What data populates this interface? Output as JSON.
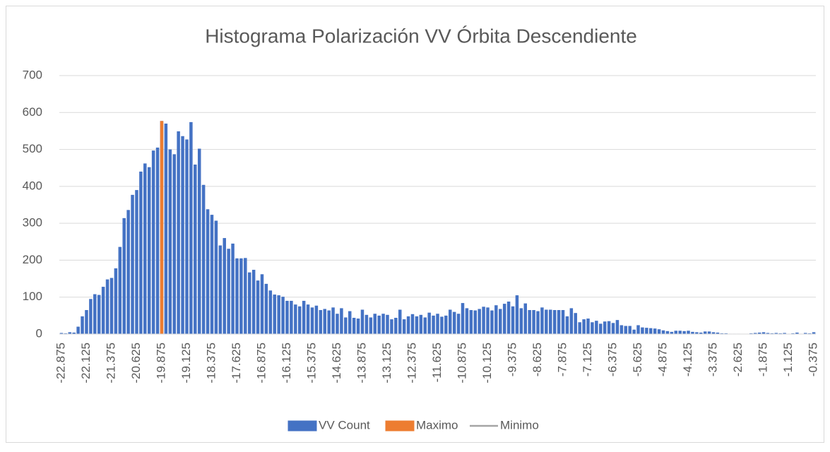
{
  "chart_data": {
    "type": "bar",
    "title": "Histograma Polarización VV Órbita Descendiente",
    "categories": [
      "-22.875",
      null,
      null,
      null,
      null,
      null,
      "-22.125",
      null,
      null,
      null,
      null,
      null,
      "-21.375",
      null,
      null,
      null,
      null,
      null,
      "-20.625",
      null,
      null,
      null,
      null,
      null,
      "-19.875",
      null,
      null,
      null,
      null,
      null,
      "-19.125",
      null,
      null,
      null,
      null,
      null,
      "-18.375",
      null,
      null,
      null,
      null,
      null,
      "-17.625",
      null,
      null,
      null,
      null,
      null,
      "-16.875",
      null,
      null,
      null,
      null,
      null,
      "-16.125",
      null,
      null,
      null,
      null,
      null,
      "-15.375",
      null,
      null,
      null,
      null,
      null,
      "-14.625",
      null,
      null,
      null,
      null,
      null,
      "-13.875",
      null,
      null,
      null,
      null,
      null,
      "-13.125",
      null,
      null,
      null,
      null,
      null,
      "-12.375",
      null,
      null,
      null,
      null,
      null,
      "-11.625",
      null,
      null,
      null,
      null,
      null,
      "-10.875",
      null,
      null,
      null,
      null,
      null,
      "-10.125",
      null,
      null,
      null,
      null,
      null,
      "-9.375",
      null,
      null,
      null,
      null,
      null,
      "-8.625",
      null,
      null,
      null,
      null,
      null,
      "-7.875",
      null,
      null,
      null,
      null,
      null,
      "-7.125",
      null,
      null,
      null,
      null,
      null,
      "-6.375",
      null,
      null,
      null,
      null,
      null,
      "-5.625",
      null,
      null,
      null,
      null,
      null,
      "-4.875",
      null,
      null,
      null,
      null,
      null,
      "-4.125",
      null,
      null,
      null,
      null,
      null,
      "-3.375",
      null,
      null,
      null,
      null,
      null,
      "-2.625",
      null,
      null,
      null,
      null,
      null,
      "-1.875",
      null,
      null,
      null,
      null,
      null,
      "-1.125",
      null,
      null,
      null,
      null,
      null,
      "-0.375"
    ],
    "series": [
      {
        "name": "VV Count",
        "type": "bar",
        "color": "#4472c4",
        "values": [
          3,
          2,
          5,
          4,
          20,
          48,
          65,
          95,
          108,
          106,
          128,
          148,
          152,
          178,
          236,
          314,
          336,
          377,
          390,
          440,
          462,
          452,
          497,
          505,
          577,
          570,
          500,
          487,
          549,
          536,
          527,
          574,
          459,
          502,
          404,
          338,
          323,
          307,
          240,
          260,
          231,
          245,
          205,
          205,
          206,
          167,
          174,
          145,
          162,
          136,
          118,
          107,
          105,
          101,
          90,
          90,
          80,
          75,
          90,
          80,
          72,
          77,
          65,
          68,
          64,
          72,
          55,
          70,
          45,
          62,
          44,
          42,
          66,
          52,
          45,
          55,
          50,
          55,
          52,
          40,
          44,
          66,
          40,
          48,
          54,
          48,
          52,
          45,
          58,
          50,
          55,
          47,
          50,
          66,
          60,
          55,
          84,
          70,
          65,
          64,
          68,
          74,
          72,
          64,
          78,
          68,
          82,
          88,
          75,
          105,
          70,
          83,
          65,
          65,
          62,
          72,
          66,
          66,
          65,
          65,
          65,
          48,
          70,
          57,
          32,
          40,
          42,
          32,
          36,
          28,
          34,
          35,
          30,
          38,
          24,
          22,
          22,
          12,
          24,
          18,
          17,
          16,
          15,
          13,
          10,
          8,
          6,
          9,
          9,
          8,
          9,
          6,
          5,
          4,
          7,
          7,
          5,
          4,
          2,
          2,
          1,
          1,
          1,
          0,
          0,
          2,
          3,
          4,
          5,
          3,
          2,
          3,
          2,
          3,
          1,
          2,
          4,
          1,
          3,
          2,
          5
        ]
      },
      {
        "name": "Maximo",
        "type": "bar",
        "color": "#ed7d31",
        "values": [
          null,
          null,
          null,
          null,
          null,
          null,
          null,
          null,
          null,
          null,
          null,
          null,
          null,
          null,
          null,
          null,
          null,
          null,
          null,
          null,
          null,
          null,
          null,
          null,
          577,
          null,
          null,
          null,
          null,
          null,
          null,
          null,
          null,
          null,
          null,
          null,
          null,
          null,
          null,
          null,
          null,
          null,
          null,
          null,
          null,
          null,
          null,
          null,
          null,
          null,
          null,
          null,
          null,
          null,
          null,
          null,
          null,
          null,
          null,
          null,
          null,
          null,
          null,
          null,
          null,
          null,
          null,
          null,
          null,
          null,
          null,
          null,
          null,
          null,
          null,
          null,
          null,
          null,
          null,
          null,
          null,
          null,
          null,
          null,
          null,
          null,
          null,
          null,
          null,
          null,
          null,
          null,
          null,
          null,
          null,
          null,
          null,
          null,
          null,
          null,
          null,
          null,
          null,
          null,
          null,
          null,
          null,
          null,
          null,
          null,
          null,
          null,
          null,
          null,
          null,
          null,
          null,
          null,
          null,
          null,
          null,
          null,
          null,
          null,
          null,
          null,
          null,
          null,
          null,
          null,
          null,
          null,
          null,
          null,
          null,
          null,
          null,
          null,
          null,
          null,
          null,
          null,
          null,
          null,
          null,
          null,
          null,
          null,
          null,
          null,
          null,
          null,
          null,
          null,
          null,
          null,
          null,
          null,
          null,
          null,
          null,
          null,
          null,
          null,
          null,
          null,
          null,
          null,
          null,
          null,
          null,
          null,
          null,
          null,
          null,
          null,
          null,
          null,
          null,
          null,
          null
        ]
      },
      {
        "name": "Minimo",
        "type": "line",
        "color": "#a5a5a5",
        "values": [
          null,
          null,
          null,
          null,
          null,
          null,
          null,
          null,
          null,
          null,
          null,
          null,
          null,
          null,
          null,
          null,
          null,
          null,
          null,
          null,
          null,
          null,
          null,
          null,
          null,
          null,
          null,
          null,
          null,
          null,
          null,
          null,
          null,
          null,
          null,
          null,
          null,
          null,
          null,
          null,
          null,
          null,
          null,
          null,
          null,
          null,
          null,
          null,
          null,
          null,
          null,
          null,
          null,
          null,
          null,
          null,
          null,
          null,
          null,
          null,
          null,
          null,
          null,
          null,
          null,
          null,
          null,
          null,
          null,
          null,
          null,
          null,
          null,
          null,
          null,
          null,
          null,
          null,
          null,
          null,
          null,
          null,
          null,
          null,
          null,
          null,
          null,
          null,
          null,
          null,
          null,
          null,
          null,
          null,
          null,
          null,
          null,
          null,
          null,
          null,
          null,
          null,
          null,
          null,
          null,
          null,
          null,
          null,
          null,
          null,
          null,
          null,
          null,
          null,
          null,
          null,
          null,
          null,
          null,
          null,
          null,
          null,
          null,
          null,
          null,
          null,
          null,
          null,
          null,
          null,
          null,
          null,
          null,
          null,
          null,
          null,
          null,
          null,
          null,
          null,
          null,
          null,
          null,
          null,
          null,
          null,
          null,
          null,
          null,
          null,
          null,
          null,
          null,
          null,
          null,
          null,
          null,
          null,
          null,
          null,
          null,
          null,
          null,
          null,
          null,
          null,
          null,
          null,
          null,
          null,
          null,
          null,
          null,
          null,
          null,
          null,
          null,
          null,
          null,
          null,
          null
        ]
      }
    ],
    "ylim": [
      0,
      700
    ],
    "yticks": [
      0,
      100,
      200,
      300,
      400,
      500,
      600,
      700
    ],
    "grid": true,
    "legend": "bottom"
  }
}
